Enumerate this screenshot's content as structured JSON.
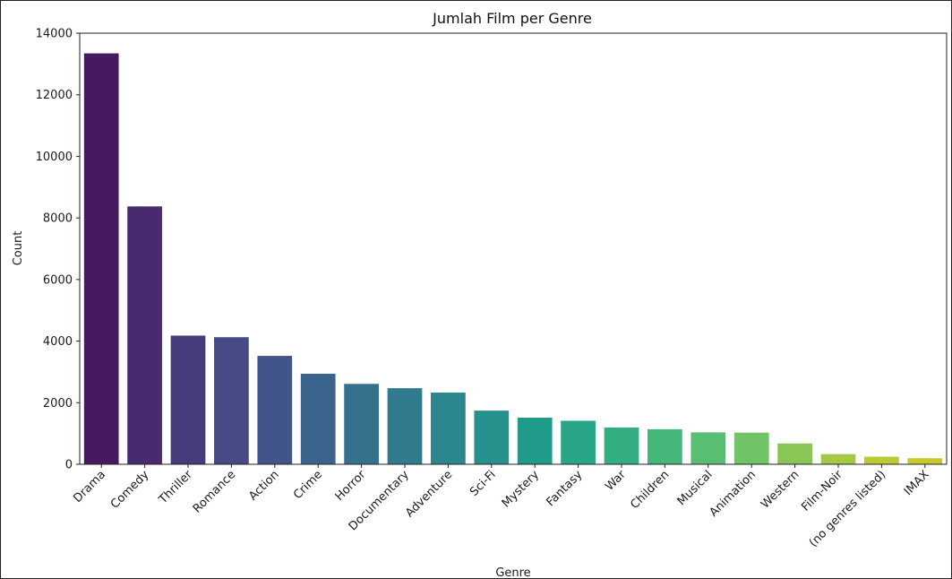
{
  "chart_data": {
    "type": "bar",
    "title": "Jumlah Film per Genre",
    "xlabel": "Genre",
    "ylabel": "Count",
    "ylim": [
      0,
      14000
    ],
    "yticks": [
      0,
      2000,
      4000,
      6000,
      8000,
      10000,
      12000,
      14000
    ],
    "categories": [
      "Drama",
      "Comedy",
      "Thriller",
      "Romance",
      "Action",
      "Crime",
      "Horror",
      "Documentary",
      "Adventure",
      "Sci-Fi",
      "Mystery",
      "Fantasy",
      "War",
      "Children",
      "Musical",
      "Animation",
      "Western",
      "Film-Noir",
      "(no genres listed)",
      "IMAX"
    ],
    "values": [
      13344,
      8374,
      4178,
      4127,
      3520,
      2939,
      2611,
      2471,
      2329,
      1743,
      1514,
      1412,
      1194,
      1139,
      1036,
      1027,
      676,
      330,
      246,
      196
    ],
    "colors": [
      "#461a5e",
      "#472b6e",
      "#473b7b",
      "#464a85",
      "#41558a",
      "#3a648c",
      "#35708d",
      "#307b8e",
      "#2b868e",
      "#26918d",
      "#219b89",
      "#27a586",
      "#33ae80",
      "#45b679",
      "#59bd72",
      "#70c366",
      "#8ac656",
      "#a3c945",
      "#bbcb33",
      "#c9c829"
    ],
    "grid": false,
    "legend": "none"
  }
}
